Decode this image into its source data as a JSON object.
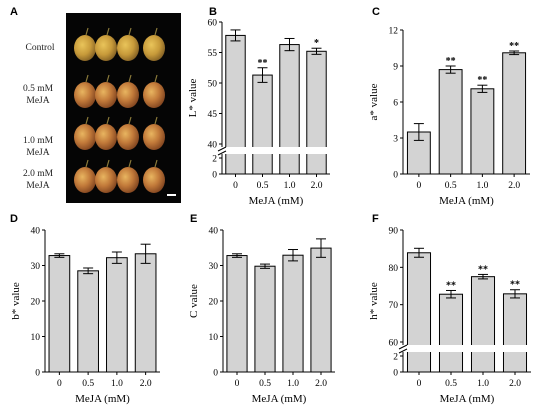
{
  "photo": {
    "panel_label": "A",
    "rows": [
      "Control",
      "0.5 mM\nMeJA",
      "1.0 mM\nMeJA",
      "2.0 mM\nMeJA"
    ]
  },
  "chart_data": [
    {
      "panel": "B",
      "type": "bar",
      "categories": [
        "0",
        "0.5",
        "1.0",
        "2.0"
      ],
      "values": [
        57.8,
        51.3,
        56.3,
        55.2
      ],
      "errors": [
        0.9,
        1.2,
        1.0,
        0.5
      ],
      "significance": [
        "",
        "**",
        "",
        "*"
      ],
      "ylabel": "L* value",
      "xlabel": "MeJA (mM)",
      "ylim": [
        40,
        60
      ],
      "yticks": [
        "40",
        "45",
        "50",
        "55",
        "60"
      ],
      "axis_break": true,
      "break_ticks": [
        "2",
        "0"
      ]
    },
    {
      "panel": "C",
      "type": "bar",
      "categories": [
        "0",
        "0.5",
        "1.0",
        "2.0"
      ],
      "values": [
        3.5,
        8.7,
        7.1,
        10.1
      ],
      "errors": [
        0.7,
        0.3,
        0.3,
        0.15
      ],
      "significance": [
        "",
        "**",
        "**",
        "**"
      ],
      "ylabel": "a* value",
      "xlabel": "MeJA (mM)",
      "ylim": [
        0,
        12
      ],
      "yticks": [
        "0",
        "3",
        "6",
        "9",
        "12"
      ],
      "axis_break": false
    },
    {
      "panel": "D",
      "type": "bar",
      "categories": [
        "0",
        "0.5",
        "1.0",
        "2.0"
      ],
      "values": [
        32.8,
        28.5,
        32.2,
        33.3
      ],
      "errors": [
        0.5,
        0.8,
        1.6,
        2.7
      ],
      "significance": [
        "",
        "",
        "",
        ""
      ],
      "ylabel": "b* value",
      "xlabel": "MeJA (mM)",
      "ylim": [
        0,
        40
      ],
      "yticks": [
        "0",
        "10",
        "20",
        "30",
        "40"
      ],
      "axis_break": false
    },
    {
      "panel": "E",
      "type": "bar",
      "categories": [
        "0",
        "0.5",
        "1.0",
        "2.0"
      ],
      "values": [
        32.8,
        29.8,
        32.9,
        34.9
      ],
      "errors": [
        0.5,
        0.6,
        1.6,
        2.6
      ],
      "significance": [
        "",
        "",
        "",
        ""
      ],
      "ylabel": "C value",
      "xlabel": "MeJA (mM)",
      "ylim": [
        0,
        40
      ],
      "yticks": [
        "0",
        "10",
        "20",
        "30",
        "40"
      ],
      "axis_break": false
    },
    {
      "panel": "F",
      "type": "bar",
      "categories": [
        "0",
        "0.5",
        "1.0",
        "2.0"
      ],
      "values": [
        83.9,
        72.8,
        77.5,
        72.9
      ],
      "errors": [
        1.2,
        1.0,
        0.6,
        1.1
      ],
      "significance": [
        "",
        "**",
        "**",
        "**"
      ],
      "ylabel": "h* value",
      "xlabel": "MeJA (mM)",
      "ylim": [
        60,
        90
      ],
      "yticks": [
        "60",
        "70",
        "80",
        "90"
      ],
      "axis_break": true,
      "break_ticks": [
        "2",
        "0"
      ]
    }
  ]
}
